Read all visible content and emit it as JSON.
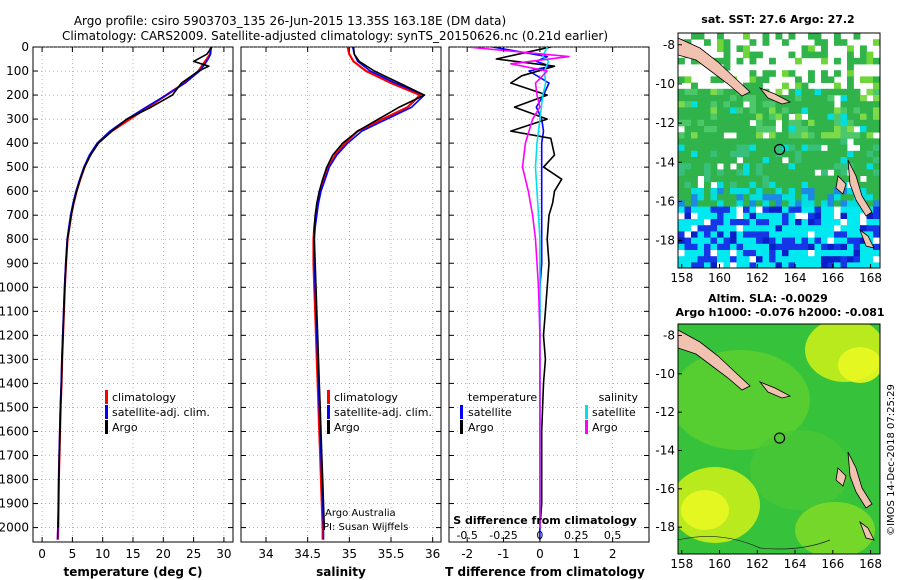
{
  "header": {
    "title_line1": "Argo profile: csiro 5903703_135 26-Jun-2015 13.35S 163.18E (DM data)",
    "title_line2": "Climatology: CARS2009. Satellite-adjusted climatology: synTS_20150626.nc (0.21d earlier)"
  },
  "colors": {
    "climatology": "#ff0000",
    "satellite": "#0000ff",
    "argo": "#000000",
    "sal_satellite": "#00e0e8",
    "sal_argo": "#ff00ff"
  },
  "chart_data": [
    {
      "id": "temperature",
      "type": "line",
      "xlabel": "temperature (deg C)",
      "ylabel": "",
      "xlim": [
        -1.5,
        31.5
      ],
      "ylim": [
        2060,
        0
      ],
      "xticks": [
        0,
        5,
        10,
        15,
        20,
        25,
        30
      ],
      "yticks": [
        0,
        100,
        200,
        300,
        400,
        500,
        600,
        700,
        800,
        900,
        1000,
        1100,
        1200,
        1300,
        1400,
        1500,
        1600,
        1700,
        1800,
        1900,
        2000
      ],
      "legend": [
        "climatology",
        "satellite-adj. clim.",
        "Argo"
      ],
      "series": [
        {
          "name": "climatology",
          "x": [
            27.8,
            27.7,
            27.2,
            26.6,
            25.8,
            23.5,
            20.5,
            17.5,
            14.5,
            11.5,
            9.2,
            7.9,
            7.0,
            6.3,
            5.7,
            5.2,
            4.8,
            4.5,
            4.2,
            3.95,
            3.75,
            3.6,
            3.45,
            3.3,
            3.2,
            3.05,
            2.95,
            2.85,
            2.75,
            2.7,
            2.65,
            2.6
          ],
          "depth": [
            0,
            30,
            50,
            70,
            100,
            150,
            200,
            250,
            300,
            350,
            400,
            450,
            500,
            550,
            600,
            650,
            700,
            750,
            800,
            900,
            1000,
            1100,
            1200,
            1300,
            1400,
            1500,
            1600,
            1700,
            1800,
            1900,
            2000,
            2050
          ]
        },
        {
          "name": "satellite-adj. clim.",
          "x": [
            27.9,
            27.8,
            27.4,
            26.9,
            26.0,
            23.6,
            20.5,
            17.2,
            14.0,
            11.2,
            9.1,
            7.8,
            6.9,
            6.2,
            5.6,
            5.1,
            4.7,
            4.4,
            4.15,
            3.9,
            3.7,
            3.55,
            3.4,
            3.25,
            3.15,
            3.0,
            2.9,
            2.8,
            2.75,
            2.7,
            2.6,
            2.55
          ],
          "depth": [
            0,
            30,
            50,
            70,
            100,
            150,
            200,
            250,
            300,
            350,
            400,
            450,
            500,
            550,
            600,
            650,
            700,
            750,
            800,
            900,
            1000,
            1100,
            1200,
            1300,
            1400,
            1500,
            1600,
            1700,
            1800,
            1900,
            2000,
            2050
          ]
        },
        {
          "name": "Argo",
          "x": [
            28.0,
            27.2,
            25.0,
            27.5,
            25.8,
            23.0,
            21.5,
            18.0,
            14.0,
            11.5,
            9.3,
            8.0,
            7.0,
            6.3,
            5.7,
            5.2,
            4.8,
            4.5,
            4.2,
            3.95,
            3.75,
            3.6,
            3.45,
            3.3,
            3.2,
            3.05,
            2.95,
            2.85,
            2.75,
            2.7,
            2.65
          ],
          "depth": [
            0,
            30,
            60,
            80,
            100,
            150,
            200,
            250,
            300,
            350,
            400,
            450,
            500,
            550,
            600,
            650,
            700,
            750,
            800,
            900,
            1000,
            1100,
            1200,
            1300,
            1400,
            1500,
            1600,
            1700,
            1800,
            1900,
            2000
          ]
        }
      ]
    },
    {
      "id": "salinity",
      "type": "line",
      "xlabel": "salinity",
      "xlim": [
        33.7,
        36.1
      ],
      "ylim": [
        2060,
        0
      ],
      "xticks": [
        34,
        34.5,
        35,
        35.5,
        36
      ],
      "legend": [
        "climatology",
        "satellite-adj. clim.",
        "Argo"
      ],
      "annotation": [
        "Argo Australia",
        "PI: Susan Wijffels"
      ],
      "series": [
        {
          "name": "climatology",
          "x": [
            34.98,
            35.0,
            35.05,
            35.2,
            35.5,
            35.85,
            35.7,
            35.4,
            35.1,
            34.95,
            34.83,
            34.75,
            34.7,
            34.65,
            34.62,
            34.6,
            34.58,
            34.57,
            34.57,
            34.58,
            34.59,
            34.6,
            34.61,
            34.62,
            34.63,
            34.64,
            34.65,
            34.66,
            34.67,
            34.68,
            34.68
          ],
          "depth": [
            0,
            30,
            60,
            100,
            150,
            200,
            250,
            300,
            350,
            400,
            450,
            500,
            550,
            600,
            650,
            700,
            750,
            800,
            900,
            1000,
            1100,
            1200,
            1300,
            1400,
            1500,
            1600,
            1700,
            1800,
            1900,
            2000,
            2050
          ]
        },
        {
          "name": "satellite-adj. clim.",
          "x": [
            35.04,
            35.06,
            35.1,
            35.25,
            35.55,
            35.9,
            35.75,
            35.45,
            35.15,
            34.98,
            34.85,
            34.76,
            34.71,
            34.66,
            34.63,
            34.61,
            34.59,
            34.58,
            34.58,
            34.59,
            34.6,
            34.61,
            34.62,
            34.63,
            34.64,
            34.65,
            34.66,
            34.67,
            34.68,
            34.69,
            34.69
          ],
          "depth": [
            0,
            30,
            60,
            100,
            150,
            200,
            250,
            300,
            350,
            400,
            450,
            500,
            550,
            600,
            650,
            700,
            750,
            800,
            900,
            1000,
            1100,
            1200,
            1300,
            1400,
            1500,
            1600,
            1700,
            1800,
            1900,
            2000,
            2050
          ]
        },
        {
          "name": "Argo",
          "x": [
            35.05,
            35.06,
            35.12,
            35.3,
            35.6,
            35.9,
            35.6,
            35.35,
            35.1,
            34.92,
            34.8,
            34.73,
            34.68,
            34.64,
            34.61,
            34.59,
            34.58,
            34.58,
            34.59,
            34.6,
            34.61,
            34.62,
            34.63,
            34.64,
            34.65,
            34.66,
            34.67,
            34.68,
            34.69,
            34.7
          ],
          "depth": [
            0,
            30,
            60,
            100,
            150,
            200,
            250,
            300,
            350,
            400,
            450,
            500,
            550,
            600,
            650,
            700,
            750,
            800,
            900,
            1000,
            1100,
            1200,
            1300,
            1400,
            1500,
            1600,
            1700,
            1800,
            1900,
            2000
          ]
        }
      ]
    },
    {
      "id": "difference",
      "type": "line",
      "xlabel": "T difference from climatology",
      "top_xlabel": "S difference from climatology",
      "xlim": [
        -2.5,
        3.0
      ],
      "ylim": [
        2060,
        0
      ],
      "xticks": [
        -2,
        -1,
        0,
        1,
        2
      ],
      "top_xticks": [
        -0.5,
        -0.25,
        0,
        0.25,
        0.5
      ],
      "legend_left_title": "temperature",
      "legend_right_title": "salinity",
      "legend": [
        "satellite",
        "Argo"
      ],
      "series": [
        {
          "name": "T satellite",
          "x": [
            -1.3,
            0.2,
            -0.1,
            0.3,
            -0.3,
            0.25,
            0.1,
            -0.1,
            0.05,
            0.1,
            0.05,
            0.05,
            0.05,
            0.05,
            0.05,
            0.05,
            0.0,
            0.0,
            0.0,
            0.0,
            0.0,
            0.0,
            0.0,
            0.0
          ],
          "depth": [
            0,
            40,
            60,
            80,
            100,
            150,
            200,
            250,
            300,
            350,
            400,
            500,
            600,
            700,
            800,
            900,
            1000,
            1200,
            1400,
            1600,
            1800,
            1900,
            2000,
            2050
          ]
        },
        {
          "name": "T Argo",
          "x": [
            0.3,
            -0.6,
            -1.2,
            0.4,
            -0.5,
            -0.8,
            0.2,
            -0.7,
            0.2,
            -0.8,
            0.3,
            0.4,
            0.1,
            0.6,
            0.4,
            0.35,
            0.25,
            0.2,
            0.25,
            0.2,
            0.15,
            0.1,
            0.15,
            0.1,
            0.05,
            0.05,
            0.05,
            0.0
          ],
          "depth": [
            0,
            30,
            50,
            80,
            120,
            150,
            200,
            250,
            300,
            350,
            380,
            450,
            500,
            550,
            600,
            650,
            700,
            800,
            900,
            1000,
            1100,
            1200,
            1300,
            1400,
            1600,
            1800,
            1900,
            2000
          ]
        },
        {
          "name": "S satellite",
          "x": [
            0.05,
            0.02,
            0.06,
            0.03,
            0.04,
            0.02,
            0.01,
            0.0,
            -0.01,
            -0.02,
            -0.03,
            -0.02,
            -0.01,
            0.0,
            0.0,
            0.0,
            0.0,
            0.0,
            0.0
          ],
          "depth": [
            0,
            40,
            60,
            100,
            150,
            200,
            250,
            300,
            350,
            400,
            500,
            600,
            700,
            800,
            1000,
            1200,
            1500,
            1800,
            2000
          ]
        },
        {
          "name": "S Argo",
          "x": [
            -0.5,
            0.2,
            -0.2,
            0.05,
            -0.03,
            -0.02,
            0.0,
            -0.05,
            -0.1,
            -0.12,
            -0.08,
            -0.05,
            -0.03,
            -0.02,
            -0.01,
            0.0,
            0.0,
            0.0
          ],
          "depth": [
            0,
            40,
            70,
            100,
            150,
            200,
            250,
            300,
            400,
            500,
            600,
            700,
            800,
            900,
            1000,
            1200,
            1500,
            2000
          ]
        }
      ]
    }
  ],
  "maps": {
    "sst": {
      "title": "sat. SST: 27.6 Argo: 27.2",
      "x_ticks": [
        "158",
        "160",
        "162",
        "164",
        "166",
        "168"
      ],
      "y_ticks": [
        "-8",
        "-10",
        "-12",
        "-14",
        "-16",
        "-18"
      ],
      "float_lon": 163.18,
      "float_lat": -13.35
    },
    "sla": {
      "title_line1": "Altim. SLA: -0.0029",
      "title_line2": "Argo h1000: -0.076 h2000: -0.081",
      "x_ticks": [
        "158",
        "160",
        "162",
        "164",
        "166",
        "168"
      ],
      "y_ticks": [
        "-8",
        "-10",
        "-12",
        "-14",
        "-16",
        "-18"
      ],
      "float_lon": 163.18,
      "float_lat": -13.35
    }
  },
  "watermark": "©IMOS 14-Dec-2018 07:25:29"
}
